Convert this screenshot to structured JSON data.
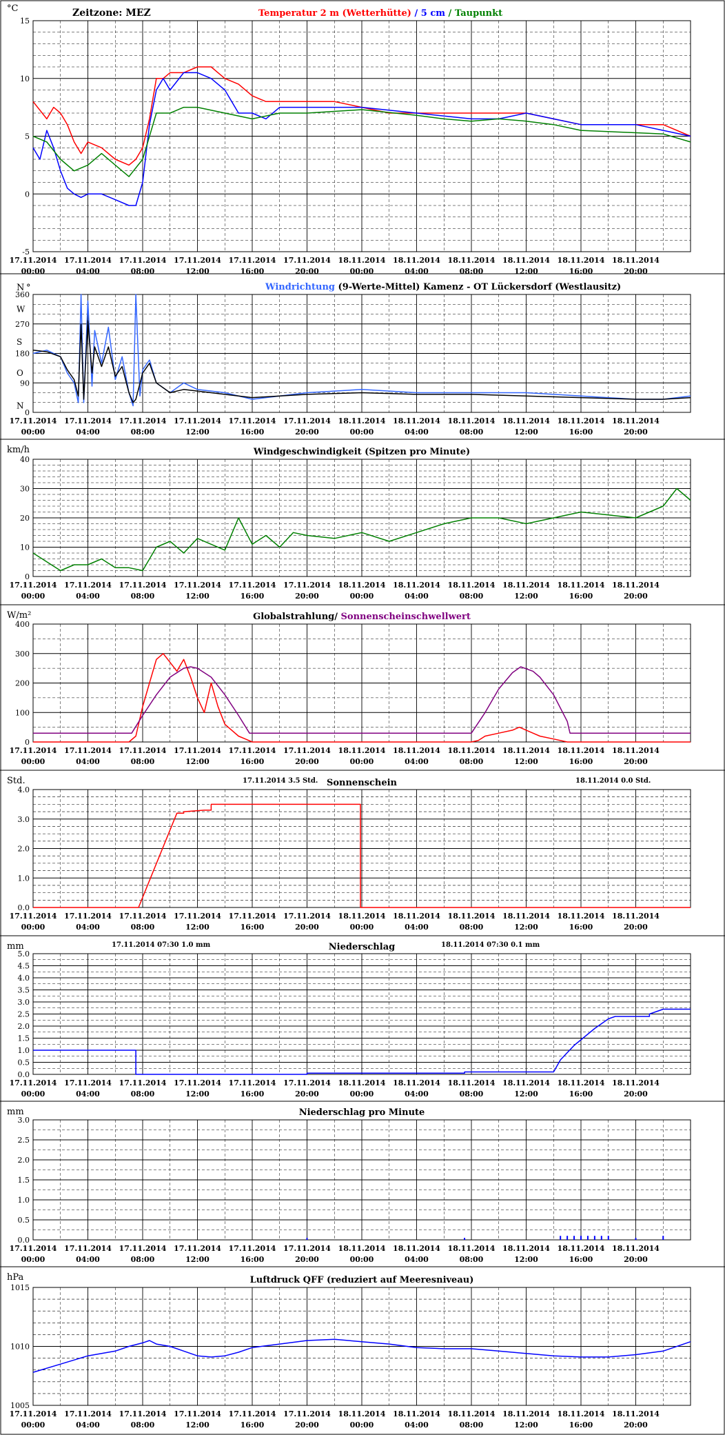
{
  "colors": {
    "red": "#ff0000",
    "blue": "#0000ff",
    "lightblue": "#3366ff",
    "green": "#008000",
    "black": "#000000",
    "purple": "#800080"
  },
  "x_axis": {
    "labels": [
      [
        "17.11.2014",
        "00:00"
      ],
      [
        "17.11.2014",
        "04:00"
      ],
      [
        "17.11.2014",
        "08:00"
      ],
      [
        "17.11.2014",
        "12:00"
      ],
      [
        "17.11.2014",
        "16:00"
      ],
      [
        "17.11.2014",
        "20:00"
      ],
      [
        "18.11.2014",
        "00:00"
      ],
      [
        "18.11.2014",
        "04:00"
      ],
      [
        "18.11.2014",
        "08:00"
      ],
      [
        "18.11.2014",
        "12:00"
      ],
      [
        "18.11.2014",
        "16:00"
      ],
      [
        "18.11.2014",
        "20:00"
      ]
    ],
    "range_hours": [
      0,
      48
    ]
  },
  "chart_data": [
    {
      "id": "temp",
      "type": "line",
      "unit": "°C",
      "zone": "Zeitzone: MEZ",
      "title_parts": [
        {
          "text": "Temperatur 2 m (Wetterhütte)",
          "color": "#ff0000"
        },
        {
          "text": "  /  ",
          "color": "#0000ff"
        },
        {
          "text": "5 cm",
          "color": "#0000ff"
        },
        {
          "text": " / ",
          "color": "#008000"
        },
        {
          "text": "Taupunkt",
          "color": "#008000"
        }
      ],
      "ylim": [
        -5,
        15
      ],
      "ytick_labels": [
        "15",
        "10",
        "5",
        "0",
        "-5"
      ],
      "yticks": [
        15,
        10,
        5,
        0,
        -5
      ],
      "minor_step": 1,
      "series": [
        {
          "color": "#ff0000",
          "x": [
            0,
            1,
            1.5,
            2,
            2.5,
            3,
            3.5,
            4,
            5,
            6,
            7,
            7.5,
            8,
            8.5,
            9,
            9.5,
            10,
            11,
            12,
            13,
            13.5,
            14,
            15,
            16,
            17,
            18,
            19,
            20,
            22,
            24,
            26,
            28,
            30,
            32,
            34,
            36,
            38,
            40,
            42,
            44,
            46,
            48
          ],
          "y": [
            8,
            6.5,
            7.5,
            7,
            6,
            4.5,
            3.5,
            4.5,
            4,
            3,
            2.5,
            3,
            4,
            6.5,
            10,
            10,
            10.5,
            10.5,
            11,
            11,
            10.5,
            10,
            9.5,
            8.5,
            8,
            8,
            8,
            8,
            8,
            7.5,
            7,
            7,
            7,
            7,
            7,
            7,
            6.5,
            6,
            6,
            6,
            6,
            5
          ]
        },
        {
          "color": "#0000ff",
          "x": [
            0,
            0.5,
            1,
            1.5,
            2,
            2.5,
            3,
            3.5,
            4,
            5,
            6,
            7,
            7.5,
            8,
            8.5,
            9,
            9.5,
            10,
            11,
            12,
            13,
            14,
            15,
            16,
            17,
            18,
            20,
            24,
            28,
            32,
            34,
            36,
            38,
            40,
            44,
            46,
            48
          ],
          "y": [
            4,
            3,
            5.5,
            4,
            2,
            0.5,
            0,
            -0.3,
            0,
            0,
            -0.5,
            -1,
            -1,
            1,
            6,
            9,
            10,
            9,
            10.5,
            10.5,
            10,
            9,
            7,
            7,
            6.5,
            7.5,
            7.5,
            7.5,
            7,
            6.5,
            6.5,
            7,
            6.5,
            6,
            6,
            5.5,
            5
          ]
        },
        {
          "color": "#008000",
          "x": [
            0,
            1,
            2,
            3,
            4,
            5,
            6,
            7,
            8,
            9,
            10,
            11,
            12,
            14,
            16,
            18,
            20,
            24,
            28,
            30,
            32,
            34,
            36,
            38,
            40,
            44,
            46,
            48
          ],
          "y": [
            5,
            4.5,
            3,
            2,
            2.5,
            3.5,
            2.5,
            1.5,
            3,
            7,
            7,
            7.5,
            7.5,
            7,
            6.5,
            7,
            7,
            7.3,
            6.8,
            6.5,
            6.3,
            6.5,
            6.3,
            6,
            5.5,
            5.3,
            5.2,
            4.5
          ]
        }
      ]
    },
    {
      "id": "winddir",
      "type": "line",
      "title_parts": [
        {
          "text": "Windrichtung",
          "color": "#3366ff"
        },
        {
          "text": " (9-Werte-Mittel)",
          "color": "#000000"
        },
        {
          "text": "          Kamenz - OT Lückersdorf (Westlausitz)",
          "color": "#000000"
        }
      ],
      "unit_left": "N",
      "unit_right": "°",
      "ylim": [
        0,
        360
      ],
      "yticks": [
        360,
        270,
        180,
        90,
        0
      ],
      "ytick_labels": [
        "360",
        "270",
        "180",
        "90",
        "0"
      ],
      "dir_labels": [
        {
          "v": 315,
          "t": "W"
        },
        {
          "v": 215,
          "t": "S"
        },
        {
          "v": 120,
          "t": "O"
        },
        {
          "v": 20,
          "t": "N"
        }
      ],
      "minor_step": 30,
      "series": [
        {
          "color": "#3366ff",
          "x": [
            0,
            1,
            2,
            2.5,
            3,
            3.3,
            3.5,
            3.7,
            4,
            4.3,
            4.5,
            5,
            5.5,
            6,
            6.5,
            7,
            7.3,
            7.5,
            7.8,
            8,
            8.5,
            9,
            10,
            11,
            12,
            14,
            16,
            18,
            20,
            24,
            28,
            32,
            36,
            40,
            44,
            46,
            48
          ],
          "y": [
            180,
            190,
            170,
            120,
            90,
            30,
            360,
            30,
            340,
            80,
            250,
            150,
            260,
            100,
            170,
            60,
            20,
            360,
            50,
            130,
            160,
            90,
            60,
            90,
            70,
            60,
            40,
            50,
            60,
            70,
            60,
            60,
            60,
            50,
            40,
            40,
            50
          ]
        },
        {
          "color": "#000000",
          "x": [
            0,
            1,
            2,
            2.5,
            3,
            3.3,
            3.5,
            3.7,
            4,
            4.3,
            4.5,
            5,
            5.5,
            6,
            6.5,
            7,
            7.3,
            7.5,
            8,
            8.5,
            9,
            10,
            11,
            12,
            14,
            16,
            18,
            20,
            24,
            28,
            32,
            36,
            40,
            44,
            46,
            48
          ],
          "y": [
            190,
            185,
            170,
            130,
            100,
            50,
            270,
            40,
            280,
            120,
            200,
            140,
            200,
            110,
            140,
            60,
            30,
            40,
            120,
            150,
            90,
            60,
            70,
            65,
            55,
            45,
            50,
            55,
            60,
            55,
            55,
            50,
            45,
            40,
            40,
            45
          ]
        }
      ]
    },
    {
      "id": "windspeed",
      "type": "line",
      "unit": "km/h",
      "title_parts": [
        {
          "text": "Windgeschwindigkeit (Spitzen pro Minute)",
          "color": "#000000"
        }
      ],
      "ylim": [
        0,
        40
      ],
      "yticks": [
        40,
        30,
        20,
        10,
        0
      ],
      "ytick_labels": [
        "40",
        "30",
        "20",
        "10",
        "0"
      ],
      "minor_step": 2,
      "series": [
        {
          "color": "#008000",
          "x": [
            0,
            1,
            2,
            3,
            4,
            5,
            6,
            7,
            8,
            9,
            10,
            11,
            12,
            13,
            14,
            15,
            16,
            17,
            18,
            19,
            20,
            22,
            24,
            26,
            28,
            30,
            32,
            34,
            36,
            38,
            40,
            42,
            44,
            46,
            47,
            48
          ],
          "y": [
            8,
            5,
            2,
            4,
            4,
            6,
            3,
            3,
            2,
            10,
            12,
            8,
            13,
            11,
            9,
            20,
            11,
            14,
            10,
            15,
            14,
            13,
            15,
            12,
            15,
            18,
            20,
            20,
            18,
            20,
            22,
            21,
            20,
            24,
            30,
            26
          ]
        }
      ]
    },
    {
      "id": "radiation",
      "type": "line",
      "unit": "W/m²",
      "title_parts": [
        {
          "text": "Globalstrahlung/ ",
          "color": "#000000"
        },
        {
          "text": "Sonnenscheinschwellwert",
          "color": "#800080"
        }
      ],
      "ylim": [
        0,
        400
      ],
      "yticks": [
        400,
        300,
        200,
        100,
        0
      ],
      "ytick_labels": [
        "400",
        "300",
        "200",
        "100",
        "0"
      ],
      "minor_step": 50,
      "series": [
        {
          "color": "#ff0000",
          "x": [
            0,
            7,
            7.5,
            8,
            8.5,
            9,
            9.5,
            10,
            10.5,
            11,
            11.5,
            12,
            12.5,
            13,
            13.5,
            14,
            14.5,
            15,
            15.5,
            16,
            32,
            32.5,
            33,
            34,
            35,
            35.5,
            36,
            36.5,
            37,
            38,
            39,
            48
          ],
          "y": [
            0,
            0,
            20,
            120,
            200,
            280,
            300,
            270,
            240,
            280,
            220,
            150,
            100,
            200,
            120,
            60,
            40,
            20,
            10,
            0,
            0,
            5,
            20,
            30,
            40,
            50,
            40,
            30,
            20,
            10,
            0,
            0
          ]
        },
        {
          "color": "#800080",
          "x": [
            0,
            7.2,
            8,
            9,
            10,
            11,
            11.5,
            12,
            13,
            14,
            15,
            15.8,
            32,
            33,
            34,
            35,
            35.6,
            36.5,
            37,
            38,
            39,
            39.2,
            48
          ],
          "y": [
            30,
            30,
            90,
            160,
            220,
            250,
            255,
            250,
            220,
            160,
            90,
            30,
            30,
            100,
            180,
            235,
            255,
            240,
            220,
            160,
            70,
            30,
            30
          ]
        }
      ]
    },
    {
      "id": "sunshine",
      "type": "line",
      "unit": "Std.",
      "title_parts": [
        {
          "text": "Sonnenschein",
          "color": "#000000"
        }
      ],
      "header_left": [
        "17.11.2014",
        "3.5",
        "Std."
      ],
      "header_right": [
        "18.11.2014",
        "0.0",
        "Std."
      ],
      "ylim": [
        0,
        4
      ],
      "yticks": [
        4,
        3,
        2,
        1,
        0
      ],
      "ytick_labels": [
        "4.0",
        "3.0",
        "2.0",
        "1.0",
        "0.0"
      ],
      "minor_step": 0.25,
      "series": [
        {
          "color": "#ff0000",
          "x": [
            0,
            7.7,
            10.5,
            11,
            11,
            12.5,
            13,
            13,
            23.9,
            23.9,
            48
          ],
          "y": [
            0,
            0,
            3.2,
            3.2,
            3.25,
            3.3,
            3.3,
            3.5,
            3.5,
            0,
            0
          ]
        }
      ]
    },
    {
      "id": "precip",
      "type": "line",
      "unit": "mm",
      "title_parts": [
        {
          "text": "Niederschlag",
          "color": "#000000"
        }
      ],
      "header_left": [
        "17.11.2014 07:30",
        "1.0",
        "mm"
      ],
      "header_right": [
        "18.11.2014 07:30",
        "0.1",
        "mm"
      ],
      "ylim": [
        0,
        5
      ],
      "yticks": [
        5.0,
        4.5,
        4.0,
        3.5,
        3.0,
        2.5,
        2.0,
        1.5,
        1.0,
        0.5,
        0.0
      ],
      "ytick_labels": [
        "5.0",
        "4.5",
        "4.0",
        "3.5",
        "3.0",
        "2.5",
        "2.0",
        "1.5",
        "1.0",
        "0.5",
        "0.0"
      ],
      "minor_step": 0.25,
      "series": [
        {
          "color": "#0000ff",
          "x": [
            0,
            7.5,
            7.5,
            20,
            20,
            31.5,
            31.5,
            38,
            38.5,
            39.5,
            41,
            42,
            42.5,
            45,
            45,
            46,
            48
          ],
          "y": [
            1,
            1,
            0,
            0,
            0.05,
            0.05,
            0.1,
            0.1,
            0.6,
            1.2,
            1.9,
            2.3,
            2.4,
            2.4,
            2.5,
            2.7,
            2.7
          ]
        }
      ]
    },
    {
      "id": "precip_min",
      "type": "bar",
      "unit": "mm",
      "title_parts": [
        {
          "text": "Niederschlag pro Minute",
          "color": "#000000"
        }
      ],
      "ylim": [
        0,
        3
      ],
      "yticks": [
        3,
        2.5,
        2,
        1.5,
        1,
        0.5,
        0
      ],
      "ytick_labels": [
        "3.0",
        "2.5",
        "2.0",
        "1.5",
        "1.0",
        "0.5",
        "0.0"
      ],
      "minor_step": 0.25,
      "bars": {
        "color": "#0000ff",
        "x": [
          20,
          31.5,
          38.5,
          39,
          39.5,
          40,
          40.5,
          41,
          41.5,
          42,
          44,
          46
        ],
        "y": [
          0.05,
          0.05,
          0.1,
          0.1,
          0.1,
          0.1,
          0.1,
          0.1,
          0.1,
          0.1,
          0.05,
          0.1
        ]
      }
    },
    {
      "id": "pressure",
      "type": "line",
      "unit": "hPa",
      "title_parts": [
        {
          "text": "Luftdruck QFF (reduziert auf Meeresniveau)",
          "color": "#000000"
        }
      ],
      "ylim": [
        1005,
        1015
      ],
      "yticks": [
        1015,
        1010,
        1005
      ],
      "ytick_labels": [
        "1015",
        "1010",
        "1005"
      ],
      "minor_step": 1,
      "series": [
        {
          "color": "#0000ff",
          "x": [
            0,
            2,
            4,
            6,
            7,
            8,
            8.5,
            9,
            10,
            11,
            12,
            13,
            14,
            15,
            16,
            18,
            20,
            22,
            24,
            26,
            28,
            30,
            32,
            34,
            36,
            38,
            40,
            42,
            44,
            46,
            48
          ],
          "y": [
            1007.8,
            1008.5,
            1009.2,
            1009.6,
            1010,
            1010.3,
            1010.5,
            1010.2,
            1010,
            1009.6,
            1009.2,
            1009.1,
            1009.2,
            1009.5,
            1009.9,
            1010.2,
            1010.5,
            1010.6,
            1010.4,
            1010.2,
            1009.9,
            1009.8,
            1009.8,
            1009.6,
            1009.4,
            1009.2,
            1009.1,
            1009.1,
            1009.3,
            1009.6,
            1010.4
          ]
        }
      ]
    }
  ]
}
